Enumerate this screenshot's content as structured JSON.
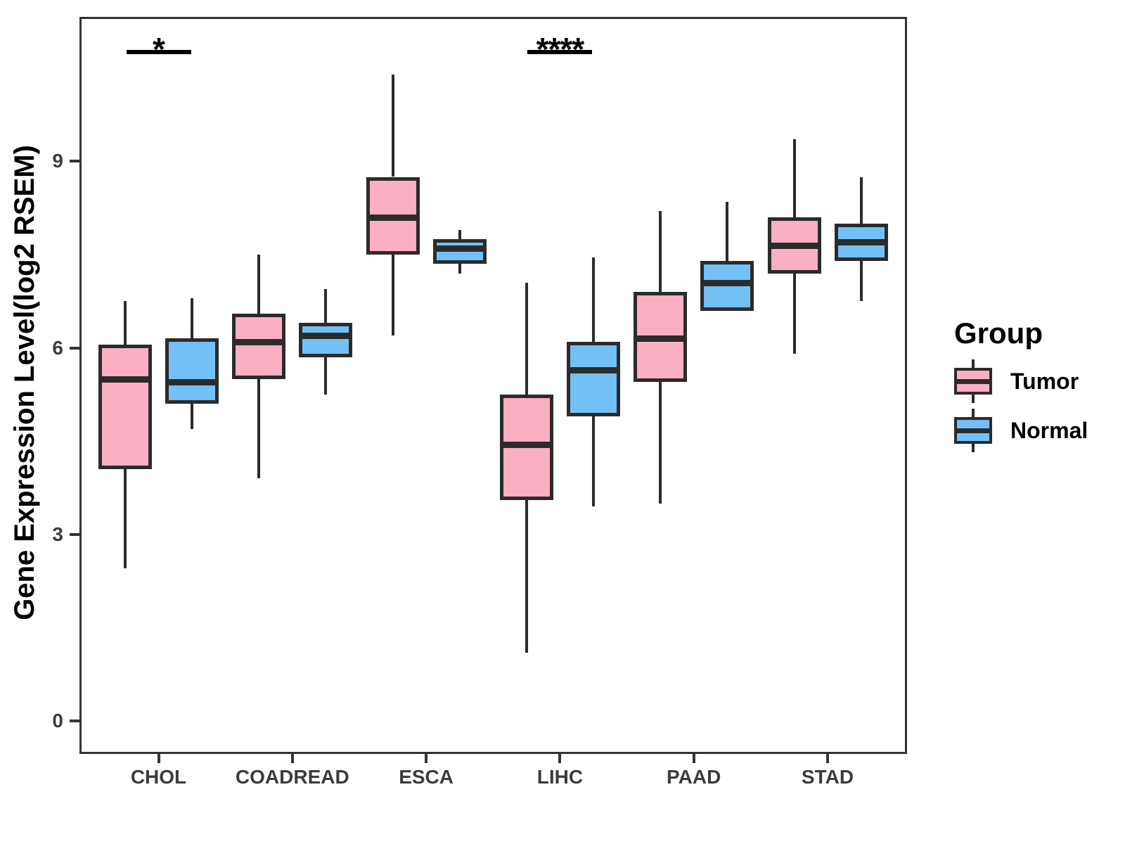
{
  "figure": {
    "background": "#FFFFFF",
    "y_axis": {
      "title": "Gene Expression Level(log2 RSEM)",
      "tick_values": [
        0,
        3,
        6,
        9
      ]
    },
    "x_axis": {
      "categories": [
        "CHOL",
        "COADREAD",
        "ESCA",
        "LIHC",
        "PAAD",
        "STAD"
      ]
    },
    "legend": {
      "title": "Group",
      "items": [
        {
          "label": "Tumor",
          "color": "#FAAFC3"
        },
        {
          "label": "Normal",
          "color": "#73C0F7"
        }
      ]
    },
    "colors": {
      "stroke": "#2B2B2B",
      "axis_text": "#3C3C3C",
      "panel_border": "#333333",
      "annotation": "#000000"
    }
  },
  "chart_data": {
    "type": "boxplot",
    "title": "",
    "xlabel": "",
    "ylabel": "Gene Expression Level(log2 RSEM)",
    "ylim": [
      -0.5,
      11.3
    ],
    "yticks": [
      0,
      3,
      6,
      9
    ],
    "grid": false,
    "legend_position": "right",
    "categories": [
      "CHOL",
      "COADREAD",
      "ESCA",
      "LIHC",
      "PAAD",
      "STAD"
    ],
    "groups": [
      "Tumor",
      "Normal"
    ],
    "series": [
      {
        "name": "Tumor",
        "color": "#FAAFC3",
        "boxes": [
          {
            "category": "CHOL",
            "min": 2.45,
            "q1": 4.05,
            "median": 5.5,
            "q3": 6.05,
            "max": 6.75
          },
          {
            "category": "COADREAD",
            "min": 3.9,
            "q1": 5.5,
            "median": 6.1,
            "q3": 6.55,
            "max": 7.5
          },
          {
            "category": "ESCA",
            "min": 6.2,
            "q1": 7.5,
            "median": 8.1,
            "q3": 8.75,
            "max": 10.4
          },
          {
            "category": "LIHC",
            "min": 1.1,
            "q1": 3.55,
            "median": 4.45,
            "q3": 5.25,
            "max": 7.05
          },
          {
            "category": "PAAD",
            "min": 3.5,
            "q1": 5.45,
            "median": 6.15,
            "q3": 6.9,
            "max": 8.2
          },
          {
            "category": "STAD",
            "min": 5.9,
            "q1": 7.2,
            "median": 7.65,
            "q3": 8.1,
            "max": 9.35
          }
        ]
      },
      {
        "name": "Normal",
        "color": "#73C0F7",
        "boxes": [
          {
            "category": "CHOL",
            "min": 4.7,
            "q1": 5.1,
            "median": 5.45,
            "q3": 6.15,
            "max": 6.8
          },
          {
            "category": "COADREAD",
            "min": 5.25,
            "q1": 5.85,
            "median": 6.2,
            "q3": 6.4,
            "max": 6.95
          },
          {
            "category": "ESCA",
            "min": 7.2,
            "q1": 7.35,
            "median": 7.6,
            "q3": 7.75,
            "max": 7.9
          },
          {
            "category": "LIHC",
            "min": 3.45,
            "q1": 4.9,
            "median": 5.65,
            "q3": 6.1,
            "max": 7.45
          },
          {
            "category": "PAAD",
            "min": 6.6,
            "q1": 6.6,
            "median": 7.05,
            "q3": 7.4,
            "max": 8.35
          },
          {
            "category": "STAD",
            "min": 6.75,
            "q1": 7.4,
            "median": 7.7,
            "q3": 8.0,
            "max": 8.75
          }
        ]
      }
    ],
    "significance": [
      {
        "category": "CHOL",
        "label": "*"
      },
      {
        "category": "LIHC",
        "label": "****"
      }
    ]
  }
}
